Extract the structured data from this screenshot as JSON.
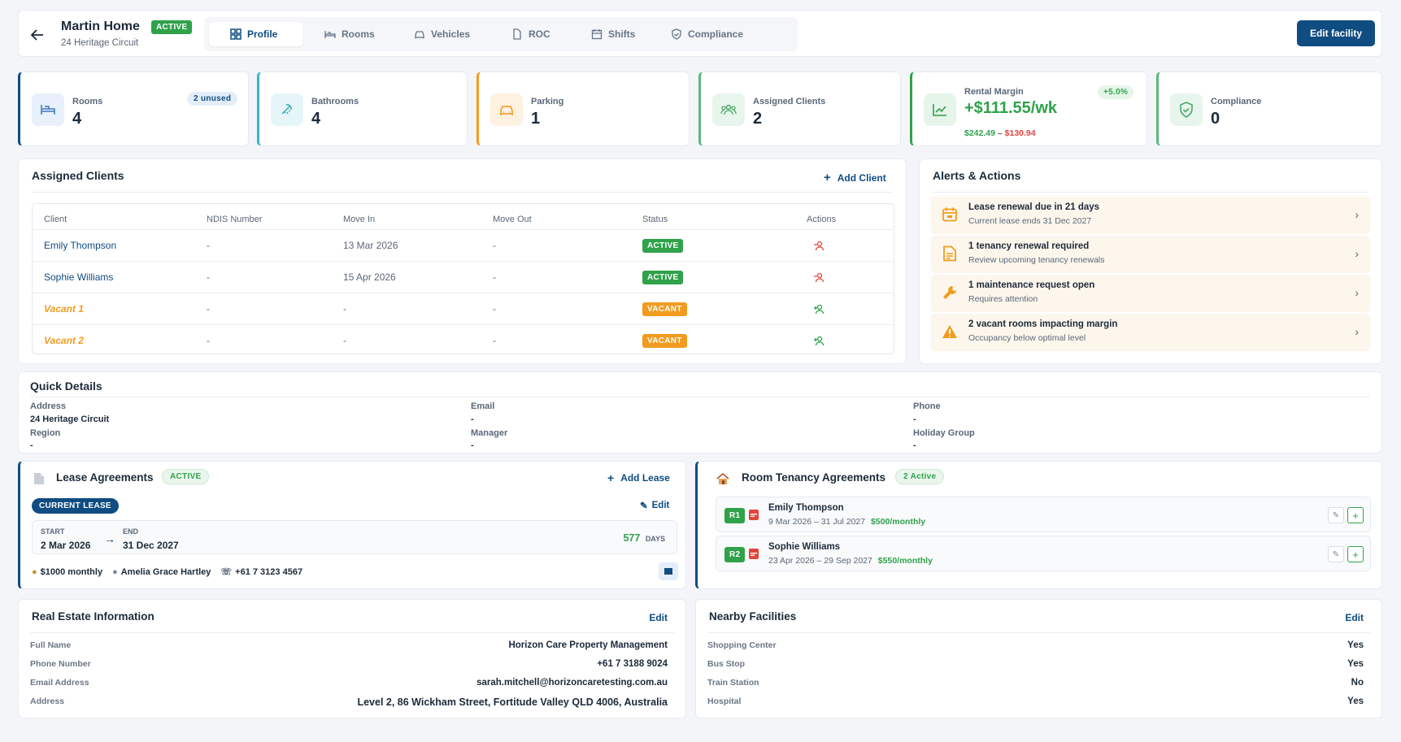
{
  "header": {
    "title": "Martin Home",
    "status": "ACTIVE",
    "subtitle": "24 Heritage Circuit",
    "tabs": [
      "Profile",
      "Rooms",
      "Vehicles",
      "ROC",
      "Shifts",
      "Compliance"
    ],
    "edit_button": "Edit facility"
  },
  "stats": {
    "rooms": {
      "label": "Rooms",
      "value": "4",
      "badge": "2 unused"
    },
    "bathrooms": {
      "label": "Bathrooms",
      "value": "4"
    },
    "parking": {
      "label": "Parking",
      "value": "1"
    },
    "clients": {
      "label": "Assigned Clients",
      "value": "2"
    },
    "margin": {
      "label": "Rental Margin",
      "value": "+$111.55/wk",
      "badge": "+5.0%",
      "income": "$242.49",
      "sep": " – ",
      "cost": "$130.94"
    },
    "compliance": {
      "label": "Compliance",
      "value": "0"
    }
  },
  "clients": {
    "title": "Assigned Clients",
    "add": "Add Client",
    "columns": [
      "Client",
      "NDIS Number",
      "Move In",
      "Move Out",
      "Status",
      "Actions"
    ],
    "rows": [
      {
        "name": "Emily Thompson",
        "ndis": "-",
        "move_in": "13 Mar 2026",
        "move_out": "-",
        "status": "ACTIVE"
      },
      {
        "name": "Sophie Williams",
        "ndis": "-",
        "move_in": "15 Apr 2026",
        "move_out": "-",
        "status": "ACTIVE"
      },
      {
        "name": "Vacant 1",
        "ndis": "-",
        "move_in": "-",
        "move_out": "-",
        "status": "VACANT"
      },
      {
        "name": "Vacant 2",
        "ndis": "-",
        "move_in": "-",
        "move_out": "-",
        "status": "VACANT"
      }
    ]
  },
  "alerts": {
    "title": "Alerts & Actions",
    "items": [
      {
        "title": "Lease renewal due in 21 days",
        "sub": "Current lease ends 31 Dec 2027",
        "icon": "calendar-icon"
      },
      {
        "title": "1 tenancy renewal required",
        "sub": "Review upcoming tenancy renewals",
        "icon": "document-icon"
      },
      {
        "title": "1 maintenance request open",
        "sub": "Requires attention",
        "icon": "wrench-icon"
      },
      {
        "title": "2 vacant rooms impacting margin",
        "sub": "Occupancy below optimal level",
        "icon": "warning-icon"
      }
    ]
  },
  "quick": {
    "title": "Quick Details",
    "address_l": "Address",
    "address_v": "24 Heritage Circuit",
    "email_l": "Email",
    "email_v": "-",
    "phone_l": "Phone",
    "phone_v": "-",
    "region_l": "Region",
    "region_v": "-",
    "manager_l": "Manager",
    "manager_v": "-",
    "holiday_l": "Holiday Group",
    "holiday_v": "-"
  },
  "lease": {
    "title": "Lease Agreements",
    "status": "ACTIVE",
    "add": "Add Lease",
    "current": "CURRENT LEASE",
    "edit": "Edit",
    "start_l": "START",
    "start_v": "2 Mar 2026",
    "end_l": "END",
    "end_v": "31 Dec 2027",
    "days": "577",
    "days_l": "DAYS",
    "rent": "$1000 monthly",
    "contact": "Amelia Grace Hartley",
    "phone": "+61 7 3123 4567"
  },
  "tenancy": {
    "title": "Room Tenancy Agreements",
    "badge": "2 Active",
    "items": [
      {
        "room": "R1",
        "name": "Emily Thompson",
        "dates": "9 Mar 2026 – 31 Jul 2027",
        "rent": "$500/monthly"
      },
      {
        "room": "R2",
        "name": "Sophie Williams",
        "dates": "23 Apr 2026 – 29 Sep 2027",
        "rent": "$550/monthly"
      }
    ]
  },
  "realestate": {
    "title": "Real Estate Information",
    "edit": "Edit",
    "fields": [
      {
        "label": "Full Name",
        "value": "Horizon Care Property Management"
      },
      {
        "label": "Phone Number",
        "value": "+61 7 3188 9024"
      },
      {
        "label": "Email Address",
        "value": "sarah.mitchell@horizoncaretesting.com.au"
      },
      {
        "label": "Address",
        "value": "Level 2, 86 Wickham Street, Fortitude Valley QLD 4006, Australia"
      }
    ]
  },
  "nearby": {
    "title": "Nearby Facilities",
    "edit": "Edit",
    "fields": [
      {
        "label": "Shopping Center",
        "value": "Yes"
      },
      {
        "label": "Bus Stop",
        "value": "Yes"
      },
      {
        "label": "Train Station",
        "value": "No"
      },
      {
        "label": "Hospital",
        "value": "Yes"
      }
    ]
  },
  "colors": {
    "navy": "#0f4c81",
    "green": "#2fa24a",
    "orange": "#f29b1e",
    "red": "#e0443c"
  }
}
